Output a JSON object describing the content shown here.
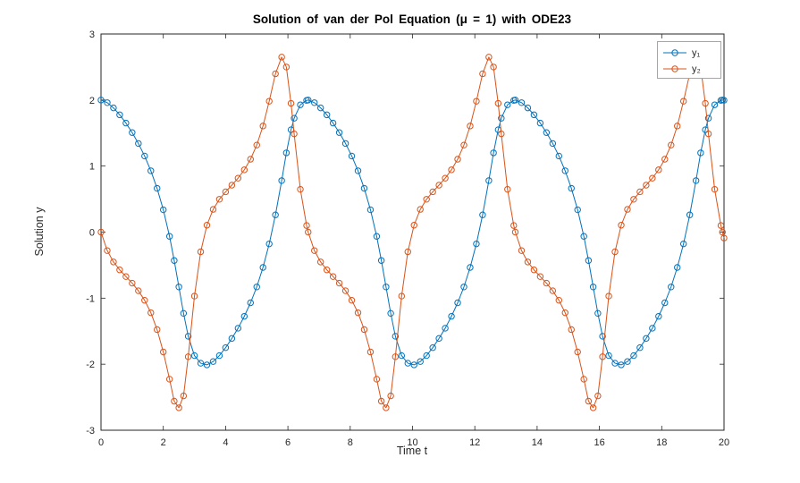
{
  "figure": {
    "background": "#ffffff"
  },
  "chart_data": {
    "type": "line",
    "title": "Solution of van der Pol Equation (μ = 1) with ODE23",
    "xlabel": "Time t",
    "ylabel": "Solution y",
    "xlim": [
      0,
      20
    ],
    "ylim": [
      -3,
      3
    ],
    "xticks": [
      0,
      2,
      4,
      6,
      8,
      10,
      12,
      14,
      16,
      18,
      20
    ],
    "yticks": [
      -3,
      -2,
      -1,
      0,
      1,
      2,
      3
    ],
    "grid": false,
    "legend_position": "top-right",
    "axis_color": "#262626",
    "legend_border_color": "#a6a6a6",
    "marker": "circle",
    "x": [
      0,
      0.2,
      0.4,
      0.6,
      0.8,
      1,
      1.2,
      1.4,
      1.6,
      1.8,
      2,
      2.2,
      2.35,
      2.5,
      2.65,
      2.8,
      3,
      3.2,
      3.4,
      3.6,
      3.8,
      4,
      4.2,
      4.4,
      4.6,
      4.8,
      5,
      5.2,
      5.4,
      5.6,
      5.8,
      5.95,
      6.1,
      6.2,
      6.4,
      6.6,
      6.65,
      6.85,
      7.05,
      7.25,
      7.45,
      7.65,
      7.85,
      8.05,
      8.25,
      8.45,
      8.65,
      8.85,
      9,
      9.15,
      9.3,
      9.45,
      9.65,
      9.85,
      10.05,
      10.25,
      10.45,
      10.65,
      10.85,
      11.05,
      11.25,
      11.45,
      11.65,
      11.85,
      12.05,
      12.25,
      12.45,
      12.6,
      12.75,
      12.85,
      13.05,
      13.25,
      13.3,
      13.5,
      13.7,
      13.9,
      14.1,
      14.3,
      14.5,
      14.7,
      14.9,
      15.1,
      15.3,
      15.5,
      15.65,
      15.8,
      15.95,
      16.1,
      16.3,
      16.5,
      16.7,
      16.9,
      17.1,
      17.3,
      17.5,
      17.7,
      17.9,
      18.1,
      18.3,
      18.5,
      18.7,
      18.9,
      19.1,
      19.25,
      19.4,
      19.5,
      19.7,
      19.9,
      19.95,
      20
    ],
    "series": [
      {
        "name": "y₁",
        "color": "#0072BD",
        "values": [
          2,
          1.96,
          1.881,
          1.776,
          1.651,
          1.507,
          1.342,
          1.152,
          0.929,
          0.663,
          0.338,
          -0.064,
          -0.43,
          -0.83,
          -1.23,
          -1.577,
          -1.87,
          -1.985,
          -2.01,
          -1.96,
          -1.87,
          -1.75,
          -1.61,
          -1.455,
          -1.275,
          -1.07,
          -0.83,
          -0.535,
          -0.178,
          0.261,
          0.78,
          1.2,
          1.55,
          1.724,
          1.928,
          1.995,
          2,
          1.96,
          1.881,
          1.776,
          1.651,
          1.507,
          1.342,
          1.152,
          0.929,
          0.663,
          0.338,
          -0.064,
          -0.43,
          -0.83,
          -1.23,
          -1.577,
          -1.87,
          -1.985,
          -2.01,
          -1.96,
          -1.87,
          -1.75,
          -1.61,
          -1.455,
          -1.275,
          -1.07,
          -0.83,
          -0.535,
          -0.178,
          0.261,
          0.78,
          1.2,
          1.55,
          1.724,
          1.928,
          1.995,
          2,
          1.96,
          1.881,
          1.776,
          1.651,
          1.507,
          1.342,
          1.152,
          0.929,
          0.663,
          0.338,
          -0.064,
          -0.43,
          -0.83,
          -1.23,
          -1.577,
          -1.87,
          -1.985,
          -2.01,
          -1.96,
          -1.87,
          -1.75,
          -1.61,
          -1.455,
          -1.275,
          -1.07,
          -0.83,
          -0.535,
          -0.178,
          0.261,
          0.78,
          1.2,
          1.55,
          1.724,
          1.928,
          1.995,
          2,
          1.996
        ]
      },
      {
        "name": "y₂",
        "color": "#D95319",
        "values": [
          0,
          -0.28,
          -0.452,
          -0.572,
          -0.673,
          -0.773,
          -0.888,
          -1.032,
          -1.221,
          -1.476,
          -1.815,
          -2.227,
          -2.56,
          -2.66,
          -2.48,
          -1.887,
          -0.969,
          -0.298,
          0.105,
          0.344,
          0.497,
          0.61,
          0.711,
          0.817,
          0.943,
          1.104,
          1.318,
          1.607,
          1.982,
          2.398,
          2.65,
          2.5,
          1.95,
          1.488,
          0.648,
          0.1,
          0,
          -0.28,
          -0.452,
          -0.572,
          -0.673,
          -0.773,
          -0.888,
          -1.032,
          -1.221,
          -1.476,
          -1.815,
          -2.227,
          -2.56,
          -2.66,
          -2.48,
          -1.887,
          -0.969,
          -0.298,
          0.105,
          0.344,
          0.497,
          0.61,
          0.711,
          0.817,
          0.943,
          1.104,
          1.318,
          1.607,
          1.982,
          2.398,
          2.65,
          2.5,
          1.95,
          1.488,
          0.648,
          0.1,
          0,
          -0.28,
          -0.452,
          -0.572,
          -0.673,
          -0.773,
          -0.888,
          -1.032,
          -1.221,
          -1.476,
          -1.815,
          -2.227,
          -2.56,
          -2.66,
          -2.48,
          -1.887,
          -0.969,
          -0.298,
          0.105,
          0.344,
          0.497,
          0.61,
          0.711,
          0.817,
          0.943,
          1.104,
          1.318,
          1.607,
          1.982,
          2.398,
          2.65,
          2.5,
          1.95,
          1.488,
          0.648,
          0.1,
          0,
          -0.09
        ]
      }
    ]
  }
}
